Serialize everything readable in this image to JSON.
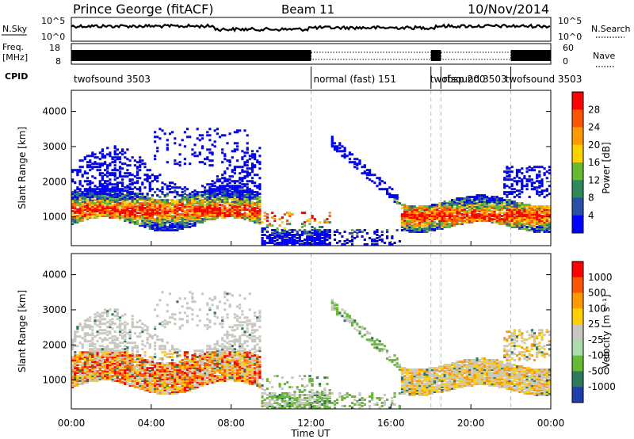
{
  "header": {
    "title": "Prince George (fitACF)",
    "beam": "Beam 11",
    "date": "10/Nov/2014"
  },
  "sky_panel": {
    "left_label": "N.Sky",
    "right_label": "N.Search",
    "left_ticks": [
      "10^5",
      "10^0"
    ],
    "right_ticks": [
      "10^5",
      "10^0"
    ]
  },
  "freq_panel": {
    "left_label_1": "Freq.",
    "left_label_2": "[MHz]",
    "right_label": "Nave",
    "left_ticks": [
      "18",
      "8"
    ],
    "right_ticks": [
      "60",
      "0"
    ]
  },
  "cpid": {
    "label": "CPID",
    "segments": [
      {
        "text": "twofsound 3503",
        "start_h": 0,
        "end_h": 12
      },
      {
        "text": "normal (fast) 151",
        "start_h": 12,
        "end_h": 18
      },
      {
        "text": "twofsound 3503",
        "start_h": 18,
        "end_h": 18.5
      },
      {
        "text": "rbsp 200",
        "start_h": 18.5,
        "end_h": 22
      },
      {
        "text": "twofsound 3503",
        "start_h": 22,
        "end_h": 24
      }
    ]
  },
  "chart_data": [
    {
      "type": "heatmap",
      "title": "Power",
      "ylabel": "Slant Range [km]",
      "ylim": [
        180,
        4600
      ],
      "xlim": [
        0,
        24
      ],
      "y_ticks": [
        "1000",
        "2000",
        "3000",
        "4000"
      ],
      "colorbar_label": "Power [dB]",
      "colorbar_ticks": [
        "4",
        "8",
        "12",
        "16",
        "20",
        "24",
        "28"
      ],
      "colorbar_colors": [
        "#0000ff",
        "#2a4fa8",
        "#2e8a5a",
        "#66bb33",
        "#ffd000",
        "#ff9900",
        "#ff5500",
        "#ff0000"
      ]
    },
    {
      "type": "heatmap",
      "title": "Velocity",
      "ylabel": "Slant Range [km]",
      "ylim": [
        180,
        4600
      ],
      "xlim": [
        0,
        24
      ],
      "y_ticks": [
        "1000",
        "2000",
        "3000",
        "4000"
      ],
      "colorbar_label": "Velocity [m s⁻¹]",
      "colorbar_ticks": [
        "1000",
        "500",
        "100",
        "25",
        "-25",
        "-100",
        "-500",
        "-1000"
      ],
      "colorbar_colors": [
        "#1f3fa8",
        "#2e7a5a",
        "#66bb33",
        "#aaddaa",
        "#c8c8c0",
        "#ffd000",
        "#ff9900",
        "#ff5500",
        "#ff0000"
      ]
    }
  ],
  "x_axis": {
    "ticks": [
      "00:00",
      "04:00",
      "08:00",
      "12:00",
      "16:00",
      "20:00",
      "00:00"
    ],
    "label": "Time UT"
  }
}
